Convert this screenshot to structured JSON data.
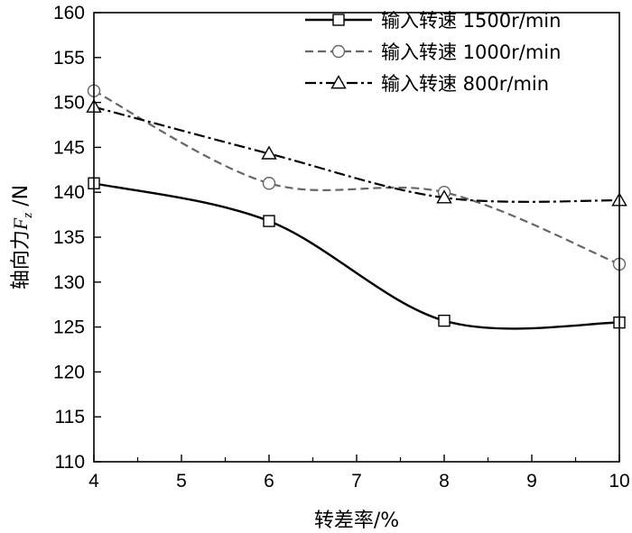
{
  "chart_data": {
    "type": "line",
    "title": "",
    "xlabel": "转差率/%",
    "ylabel": {
      "prefix": "轴向力",
      "symbol": "F",
      "subscript": "z",
      "suffix": " /N"
    },
    "xlim": [
      4,
      10
    ],
    "ylim": [
      110,
      160
    ],
    "x_ticks": [
      4,
      5,
      6,
      7,
      8,
      9,
      10
    ],
    "y_ticks": [
      110,
      115,
      120,
      125,
      130,
      135,
      140,
      145,
      150,
      155,
      160
    ],
    "x": [
      4,
      6,
      8,
      10
    ],
    "series": [
      {
        "name": "输入转速 1500r/min",
        "values": [
          141,
          136.8,
          125.7,
          125.5
        ],
        "marker": "square",
        "line_style": "solid",
        "color": "#000000"
      },
      {
        "name": "输入转速 1000r/min",
        "values": [
          151.3,
          141,
          140,
          132
        ],
        "marker": "circle",
        "line_style": "dashed",
        "color": "#666666"
      },
      {
        "name": "输入转速 800r/min",
        "values": [
          149.5,
          144.3,
          139.4,
          139.1
        ],
        "marker": "triangle",
        "line_style": "dashdot",
        "color": "#000000"
      }
    ],
    "legend_position": "top-right",
    "grid": false
  }
}
